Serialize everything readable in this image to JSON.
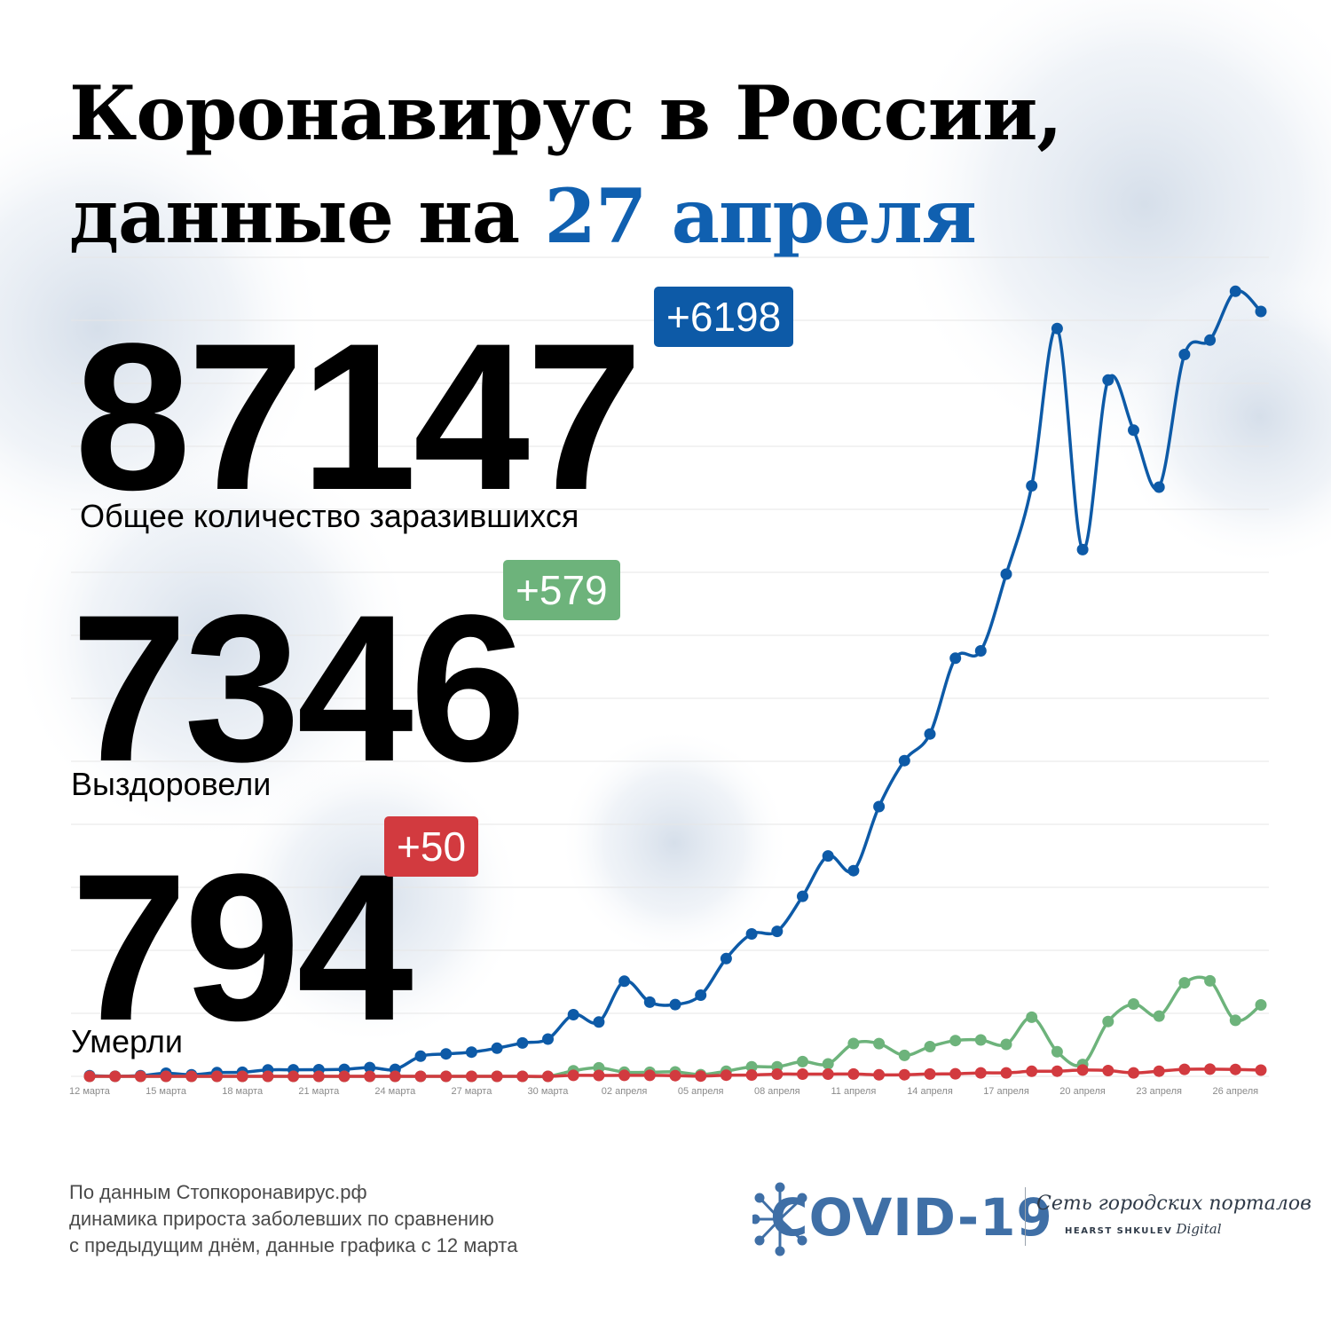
{
  "title": {
    "line1": "Коронавирус в России,",
    "line2_prefix": "данные на ",
    "line2_date": "27 апреля"
  },
  "stats": {
    "infected": {
      "value": "87147",
      "delta": "+6198",
      "label": "Общее количество заразившихся"
    },
    "recovered": {
      "value": "7346",
      "delta": "+579",
      "label": "Выздоровели"
    },
    "deaths": {
      "value": "794",
      "delta": "+50",
      "label": "Умерли"
    }
  },
  "footer": {
    "line1": "По данным Стопкоронавирус.рф",
    "line2": "динамика прироста заболевших по сравнению",
    "line3": "с предыдущим днём, данные графика с 12 марта"
  },
  "logo": {
    "covid": "COVID-19",
    "network": "Сеть городских порталов",
    "hearst": "HEARST SHKULEV",
    "digital": "Digital"
  },
  "colors": {
    "accent_blue": "#1060b0",
    "infected": "#0d5aa7",
    "recovered": "#6db37b",
    "deaths": "#d23a3f",
    "grid": "#e6e6e6"
  },
  "chart_data": {
    "type": "line",
    "x": [
      "12 марта",
      "13 марта",
      "14 марта",
      "15 марта",
      "16 марта",
      "17 марта",
      "18 марта",
      "19 марта",
      "20 марта",
      "21 марта",
      "22 марта",
      "23 марта",
      "24 марта",
      "25 марта",
      "26 марта",
      "27 марта",
      "28 марта",
      "29 марта",
      "30 марта",
      "31 марта",
      "01 апреля",
      "02 апреля",
      "03 апреля",
      "04 апреля",
      "05 апреля",
      "06 апреля",
      "07 апреля",
      "08 апреля",
      "09 апреля",
      "10 апреля",
      "11 апреля",
      "12 апреля",
      "13 апреля",
      "14 апреля",
      "15 апреля",
      "16 апреля",
      "17 апреля",
      "18 апреля",
      "19 апреля",
      "20 апреля",
      "21 апреля",
      "22 апреля",
      "23 апреля",
      "24 апреля",
      "25 апреля",
      "26 апреля",
      "27 апреля"
    ],
    "x_tick_labels": [
      "12 марта",
      "15 марта",
      "18 марта",
      "21 марта",
      "24 марта",
      "27 марта",
      "30 марта",
      "02 апреля",
      "05 апреля",
      "08 апреля",
      "11 апреля",
      "14 апреля",
      "17 апреля",
      "20 апреля",
      "23 апреля",
      "26 апреля"
    ],
    "ylim": [
      0,
      6500
    ],
    "grid": true,
    "legend": "none",
    "series": [
      {
        "color": "#0d5aa7",
        "values": [
          6,
          1,
          6,
          25,
          13,
          30,
          33,
          52,
          53,
          54,
          57,
          71,
          57,
          163,
          182,
          196,
          228,
          270,
          302,
          500,
          440,
          771,
          601,
          582,
          658,
          954,
          1154,
          1175,
          1459,
          1786,
          1667,
          2186,
          2558,
          2774,
          3388,
          3448,
          4070,
          4785,
          6060,
          4268,
          5642,
          5236,
          4774,
          5849,
          5966,
          6361,
          6198
        ]
      },
      {
        "color": "#6db37b",
        "values": [
          0,
          0,
          0,
          0,
          0,
          0,
          0,
          0,
          0,
          0,
          0,
          0,
          0,
          0,
          0,
          0,
          0,
          0,
          0,
          45,
          69,
          34,
          33,
          36,
          14,
          42,
          78,
          78,
          119,
          101,
          266,
          265,
          170,
          241,
          290,
          295,
          259,
          479,
          199,
          96,
          444,
          586,
          488,
          758,
          774,
          454,
          579
        ]
      },
      {
        "color": "#d23a3f",
        "values": [
          0,
          0,
          0,
          0,
          0,
          0,
          0,
          0,
          0,
          0,
          0,
          0,
          0,
          0,
          0,
          0,
          0,
          0,
          0,
          8,
          7,
          8,
          8,
          6,
          2,
          9,
          11,
          18,
          18,
          18,
          19,
          12,
          13,
          19,
          21,
          28,
          28,
          41,
          42,
          51,
          47,
          28,
          42,
          57,
          58,
          56,
          50
        ]
      }
    ]
  }
}
